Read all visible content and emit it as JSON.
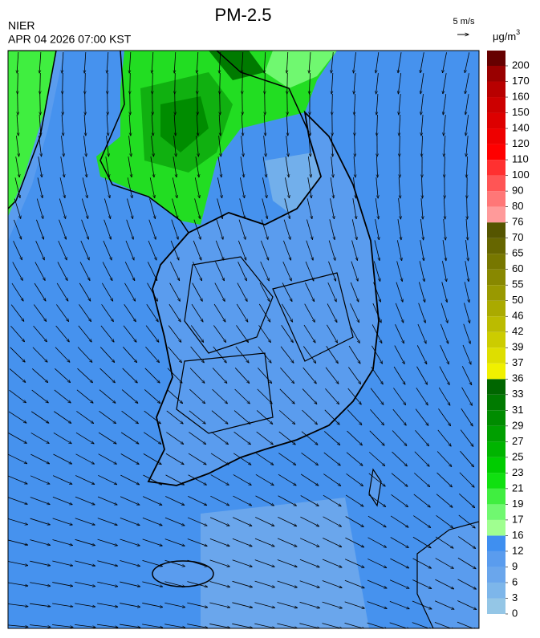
{
  "header": {
    "title": "PM-2.5",
    "agency": "NIER",
    "datetime": "APR 04 2026 07:00 KST"
  },
  "wind_reference": {
    "label": "5 m/s"
  },
  "colorbar": {
    "unit": {
      "base": "μg/m",
      "sup": "3"
    },
    "ticks": [
      0,
      3,
      6,
      9,
      12,
      16,
      17,
      19,
      21,
      23,
      25,
      27,
      29,
      31,
      33,
      36,
      37,
      39,
      42,
      46,
      50,
      55,
      60,
      65,
      70,
      76,
      80,
      90,
      100,
      110,
      120,
      140,
      150,
      160,
      170,
      200
    ],
    "colors": [
      "#94c6e6",
      "#7db6ea",
      "#6aa6ec",
      "#5a9cee",
      "#3f8ff0",
      "#a0ff90",
      "#70f870",
      "#40ee40",
      "#10e010",
      "#00cc00",
      "#00b400",
      "#009f00",
      "#008c00",
      "#007a00",
      "#006600",
      "#f0f000",
      "#dede00",
      "#cccc00",
      "#bbbb00",
      "#aaaa00",
      "#999900",
      "#888800",
      "#777700",
      "#666600",
      "#555500",
      "#ff9a9a",
      "#ff7777",
      "#ff5555",
      "#ff3030",
      "#ff0000",
      "#ee0000",
      "#dd0000",
      "#cc0000",
      "#b80000",
      "#990000",
      "#660000"
    ]
  }
}
